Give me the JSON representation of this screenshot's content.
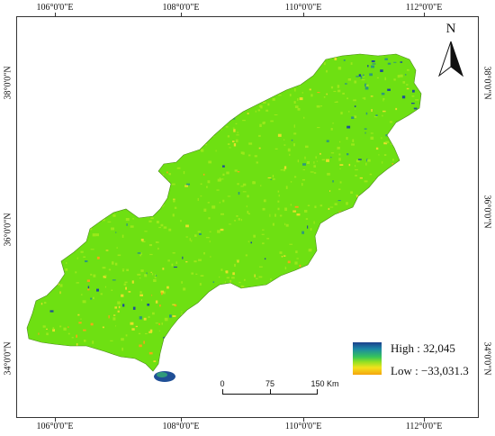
{
  "graticule": {
    "top": [
      "106°0'0\"E",
      "108°0'0\"E",
      "110°0'0\"E",
      "112°0'0\"E"
    ],
    "bottom": [
      "106°0'0\"E",
      "108°0'0\"E",
      "110°0'0\"E",
      "112°0'0\"E"
    ],
    "left": [
      "38°0'0\"N",
      "36°0'0\"N",
      "34°0'0\"N"
    ],
    "right": [
      "38°0'0\"N",
      "36°0'0\"N",
      "34°0'0\"N"
    ]
  },
  "north_arrow": {
    "label": "N",
    "icon": "north-arrow-icon"
  },
  "legend": {
    "high_label": "High : 32,045",
    "low_label": "Low : −33,031.3",
    "colors": [
      "#1c3f8c",
      "#1b86a6",
      "#37c45a",
      "#8fe024",
      "#f2e21c",
      "#f5a40f"
    ]
  },
  "scale_bar": {
    "labels": [
      "0",
      "75",
      "150 Km"
    ]
  },
  "map": {
    "colors": {
      "base": "#6ee012",
      "light": "#9ae81a",
      "yellow": "#e6e02a",
      "orange": "#f2a818",
      "teal": "#2f9a7a",
      "blue": "#1f4f96"
    }
  }
}
